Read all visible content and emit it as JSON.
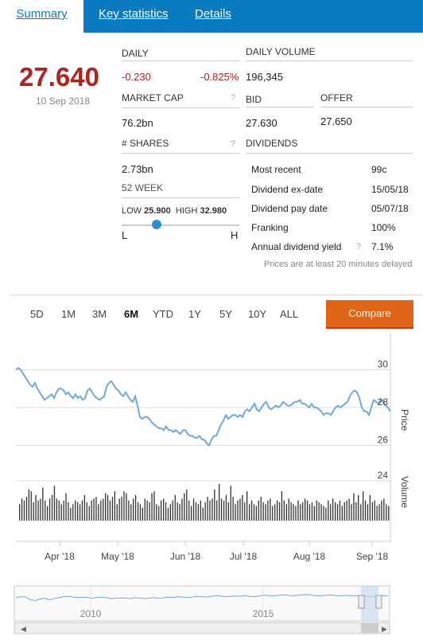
{
  "tabs": [
    {
      "label": "Summary"
    },
    {
      "label": "Key statistics"
    },
    {
      "label": "Details"
    }
  ],
  "price": {
    "last": "27.640",
    "date": "10 Sep 2018"
  },
  "daily": {
    "label": "DAILY",
    "change": "-0.230",
    "change_pct": "-0.825%"
  },
  "daily_volume": {
    "label": "DAILY VOLUME",
    "value": "196,345"
  },
  "market_cap": {
    "label": "MARKET CAP",
    "value": "76.2bn"
  },
  "bid": {
    "label": "BID",
    "value": "27.630"
  },
  "offer": {
    "label": "OFFER",
    "value": "27.650"
  },
  "shares": {
    "label": "# SHARES",
    "value": "2.73bn"
  },
  "help": "?",
  "week52": {
    "label": "52 WEEK",
    "low_label": "LOW",
    "low": "25.900",
    "high_label": "HIGH",
    "high": "32.980",
    "l": "L",
    "h": "H",
    "position": 0.3
  },
  "dividends": {
    "label": "DIVIDENDS",
    "rows": [
      {
        "label": "Most recent",
        "value": "99c"
      },
      {
        "label": "Dividend ex-date",
        "value": "15/05/18"
      },
      {
        "label": "Dividend pay date",
        "value": "05/07/18"
      },
      {
        "label": "Franking",
        "value": "100%"
      },
      {
        "label": "Annual dividend yield",
        "value": "7.1%"
      }
    ],
    "note": "Prices are at least 20 minutes delayed"
  },
  "ranges": [
    "5D",
    "1M",
    "3M",
    "6M",
    "YTD",
    "1Y",
    "5Y",
    "10Y",
    "ALL"
  ],
  "active_range": "6M",
  "compare_label": "Compare",
  "colors": {
    "accent": "#0a7bc1",
    "negative": "#b0241f",
    "compare": "#e06516",
    "line": "#6fa9de"
  },
  "chart_data": {
    "type": "line",
    "price_axis": {
      "label": "Price",
      "ticks": [
        "30",
        "28",
        "26"
      ],
      "ylim": [
        25.3,
        31.2
      ]
    },
    "volume_axis": {
      "label": "Volume",
      "ticks": [
        "24"
      ]
    },
    "x_ticks": [
      "Apr '18",
      "May '18",
      "Jun '18",
      "Jul '18",
      "Aug '18",
      "Sep '18"
    ],
    "price_values": [
      30.0,
      30.1,
      30.0,
      29.8,
      29.6,
      29.4,
      29.2,
      29.1,
      29.3,
      29.0,
      28.8,
      28.6,
      28.4,
      28.5,
      28.6,
      28.7,
      28.5,
      28.8,
      29.0,
      29.0,
      28.9,
      28.7,
      28.8,
      28.6,
      28.5,
      28.7,
      28.5,
      28.6,
      28.4,
      28.5,
      28.9,
      29.0,
      28.8,
      28.6,
      28.5,
      28.4,
      28.5,
      28.6,
      29.1,
      29.3,
      29.4,
      29.2,
      29.0,
      28.9,
      28.7,
      28.6,
      28.8,
      28.6,
      28.4,
      28.3,
      28.6,
      28.1,
      27.5,
      27.4,
      27.5,
      27.5,
      27.4,
      27.2,
      27.1,
      27.0,
      26.9,
      26.9,
      26.8,
      27.0,
      26.8,
      26.8,
      26.7,
      26.8,
      26.7,
      26.6,
      26.8,
      26.8,
      26.6,
      26.5,
      26.5,
      26.4,
      26.4,
      26.5,
      26.3,
      26.3,
      26.1,
      26.0,
      26.3,
      26.5,
      26.5,
      26.8,
      27.1,
      27.3,
      27.6,
      27.4,
      27.5,
      27.6,
      27.6,
      27.5,
      27.6,
      27.5,
      27.8,
      27.9,
      27.8,
      28.0,
      28.2,
      27.9,
      27.8,
      28.0,
      28.2,
      28.3,
      28.0,
      27.9,
      28.0,
      28.1,
      28.0,
      28.1,
      28.3,
      28.2,
      28.1,
      28.1,
      28.2,
      28.3,
      28.3,
      28.4,
      28.2,
      28.2,
      28.1,
      28.0,
      28.2,
      28.0,
      28.0,
      27.9,
      27.8,
      27.6,
      27.7,
      27.7,
      27.6,
      27.8,
      28.0,
      28.1,
      28.0,
      28.1,
      28.2,
      28.3,
      28.6,
      28.8,
      28.9,
      28.8,
      28.5,
      28.0,
      27.8,
      27.8,
      27.6,
      28.0,
      28.4,
      28.3,
      28.2,
      28.4,
      28.3,
      28.1,
      28.0,
      27.8
    ],
    "volume_values": [
      0.45,
      0.6,
      0.55,
      0.65,
      0.85,
      0.8,
      0.5,
      0.7,
      0.55,
      0.6,
      0.9,
      0.55,
      0.4,
      0.6,
      0.7,
      0.95,
      0.6,
      0.55,
      0.45,
      0.55,
      0.75,
      0.5,
      0.35,
      0.45,
      0.55,
      0.5,
      0.45,
      0.55,
      0.7,
      0.5,
      0.4,
      0.55,
      0.6,
      0.65,
      0.45,
      0.55,
      0.6,
      0.75,
      0.7,
      0.55,
      0.65,
      0.8,
      0.45,
      0.6,
      0.65,
      0.8,
      0.75,
      0.55,
      0.45,
      0.6,
      0.7,
      0.5,
      0.45,
      0.35,
      0.6,
      0.55,
      0.5,
      0.75,
      0.8,
      0.45,
      0.4,
      0.55,
      0.6,
      0.5,
      0.35,
      0.45,
      0.55,
      0.7,
      0.5,
      0.45,
      0.6,
      0.75,
      0.85,
      0.55,
      0.4,
      0.6,
      0.5,
      0.45,
      0.55,
      0.35,
      0.5,
      0.65,
      0.55,
      0.6,
      0.85,
      0.55,
      1.0,
      0.6,
      0.55,
      0.7,
      0.5,
      0.95,
      0.65,
      0.45,
      0.55,
      0.6,
      0.7,
      0.5,
      0.8,
      0.45,
      0.55,
      0.45,
      0.4,
      0.55,
      0.65,
      0.5,
      0.45,
      0.55,
      0.6,
      0.4,
      0.45,
      0.55,
      0.5,
      0.8,
      0.55,
      0.45,
      0.6,
      0.5,
      0.45,
      0.4,
      0.55,
      0.45,
      0.5,
      0.6,
      0.55,
      0.45,
      0.5,
      0.4,
      0.55,
      0.5,
      0.45,
      0.4,
      0.35,
      0.55,
      0.45,
      0.6,
      0.5,
      0.45,
      0.55,
      0.4,
      0.5,
      0.55,
      0.6,
      0.45,
      0.75,
      0.5,
      0.7,
      0.45,
      0.8,
      0.55,
      0.45,
      0.7,
      0.5,
      0.55,
      0.4,
      0.45,
      0.55,
      0.6,
      0.45,
      0.4
    ],
    "navigator": {
      "ticks": [
        "2010",
        "2015"
      ],
      "values": [
        0.55,
        0.6,
        0.58,
        0.45,
        0.4,
        0.48,
        0.52,
        0.44,
        0.5,
        0.55,
        0.6,
        0.62,
        0.58,
        0.56,
        0.58,
        0.55,
        0.52,
        0.56,
        0.58,
        0.55,
        0.5,
        0.52,
        0.54,
        0.52,
        0.5,
        0.55,
        0.52,
        0.5,
        0.53,
        0.55,
        0.52,
        0.54,
        0.58,
        0.56,
        0.6,
        0.58,
        0.55,
        0.58,
        0.62,
        0.6,
        0.58,
        0.62,
        0.65,
        0.63,
        0.6,
        0.62,
        0.64,
        0.62,
        0.66,
        0.62,
        0.6,
        0.64,
        0.68,
        0.66,
        0.64,
        0.67,
        0.7,
        0.68,
        0.65,
        0.67,
        0.7,
        0.72,
        0.68,
        0.66,
        0.64,
        0.68,
        0.7,
        0.66,
        0.64,
        0.67,
        0.65,
        0.64,
        0.66,
        0.65,
        0.62,
        0.58,
        0.62,
        0.66,
        0.64
      ]
    }
  }
}
